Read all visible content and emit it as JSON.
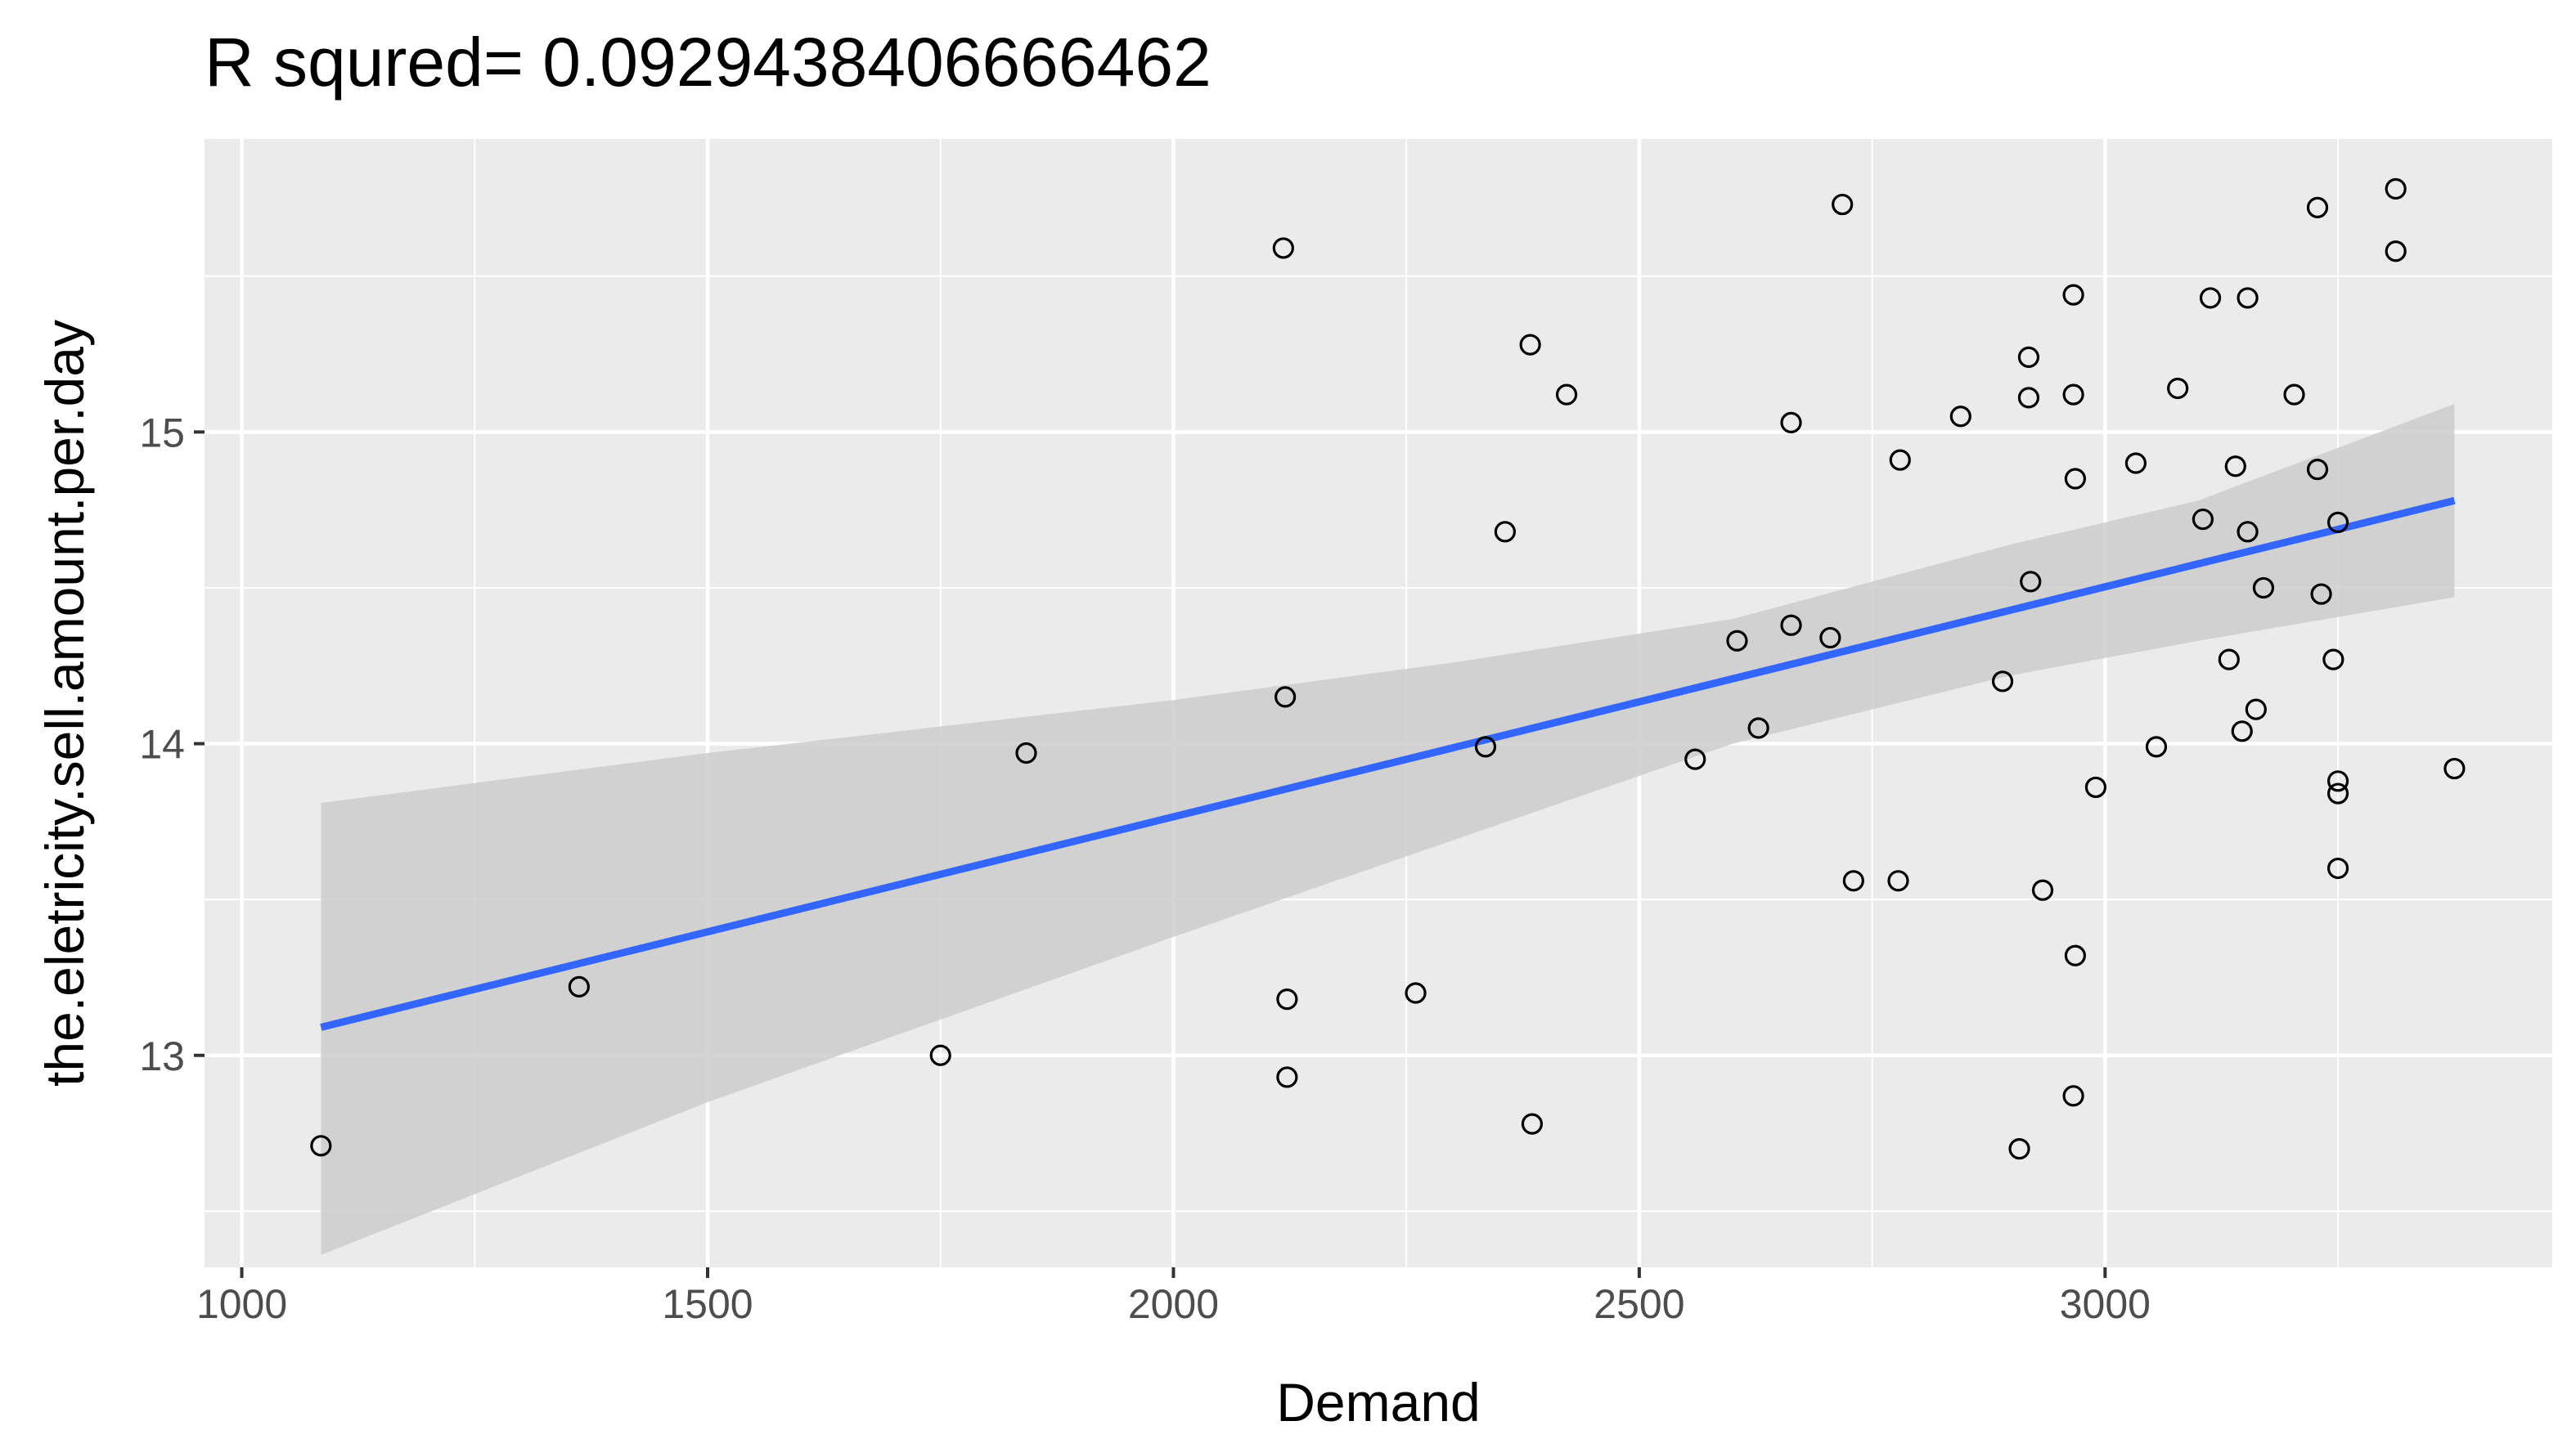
{
  "chart_data": {
    "type": "scatter",
    "title": "R squred= 0.0929438406666462",
    "xlabel": "Demand",
    "ylabel": "the.eletricity.sell.amount.per.day",
    "xlim": [
      960,
      3480
    ],
    "ylim": [
      12.32,
      15.94
    ],
    "x_ticks": [
      1000,
      1500,
      2000,
      2500,
      3000
    ],
    "y_ticks": [
      13,
      14,
      15
    ],
    "grid": true,
    "colors": {
      "panel_bg": "#ebebeb",
      "grid": "#ffffff",
      "point_stroke": "#000000",
      "line": "#3366ff",
      "ribbon": "#cccccc",
      "tick_text": "#4d4d4d"
    },
    "points": [
      {
        "x": 1085,
        "y": 12.71
      },
      {
        "x": 1362,
        "y": 13.22
      },
      {
        "x": 1750,
        "y": 13.0
      },
      {
        "x": 1842,
        "y": 13.97
      },
      {
        "x": 2118,
        "y": 15.59
      },
      {
        "x": 2120,
        "y": 14.15
      },
      {
        "x": 2122,
        "y": 13.18
      },
      {
        "x": 2122,
        "y": 12.93
      },
      {
        "x": 2260,
        "y": 13.2
      },
      {
        "x": 2335,
        "y": 13.99
      },
      {
        "x": 2356,
        "y": 14.68
      },
      {
        "x": 2383,
        "y": 15.28
      },
      {
        "x": 2385,
        "y": 12.78
      },
      {
        "x": 2422,
        "y": 15.12
      },
      {
        "x": 2560,
        "y": 13.95
      },
      {
        "x": 2605,
        "y": 14.33
      },
      {
        "x": 2628,
        "y": 14.05
      },
      {
        "x": 2663,
        "y": 15.03
      },
      {
        "x": 2663,
        "y": 14.38
      },
      {
        "x": 2705,
        "y": 14.34
      },
      {
        "x": 2718,
        "y": 15.73
      },
      {
        "x": 2730,
        "y": 13.56
      },
      {
        "x": 2778,
        "y": 13.56
      },
      {
        "x": 2780,
        "y": 14.91
      },
      {
        "x": 2845,
        "y": 15.05
      },
      {
        "x": 2890,
        "y": 14.2
      },
      {
        "x": 2908,
        "y": 12.7
      },
      {
        "x": 2918,
        "y": 15.24
      },
      {
        "x": 2918,
        "y": 15.11
      },
      {
        "x": 2920,
        "y": 14.52
      },
      {
        "x": 2933,
        "y": 13.53
      },
      {
        "x": 2966,
        "y": 15.44
      },
      {
        "x": 2966,
        "y": 15.12
      },
      {
        "x": 2968,
        "y": 14.85
      },
      {
        "x": 2968,
        "y": 13.32
      },
      {
        "x": 2966,
        "y": 12.87
      },
      {
        "x": 2990,
        "y": 13.86
      },
      {
        "x": 3033,
        "y": 14.9
      },
      {
        "x": 3055,
        "y": 13.99
      },
      {
        "x": 3078,
        "y": 15.14
      },
      {
        "x": 3105,
        "y": 14.72
      },
      {
        "x": 3113,
        "y": 15.43
      },
      {
        "x": 3133,
        "y": 14.27
      },
      {
        "x": 3140,
        "y": 14.89
      },
      {
        "x": 3147,
        "y": 14.04
      },
      {
        "x": 3153,
        "y": 15.43
      },
      {
        "x": 3153,
        "y": 14.68
      },
      {
        "x": 3162,
        "y": 14.11
      },
      {
        "x": 3170,
        "y": 14.5
      },
      {
        "x": 3203,
        "y": 15.12
      },
      {
        "x": 3228,
        "y": 15.72
      },
      {
        "x": 3228,
        "y": 14.88
      },
      {
        "x": 3232,
        "y": 14.48
      },
      {
        "x": 3245,
        "y": 14.27
      },
      {
        "x": 3250,
        "y": 14.71
      },
      {
        "x": 3250,
        "y": 13.88
      },
      {
        "x": 3250,
        "y": 13.84
      },
      {
        "x": 3250,
        "y": 13.6
      },
      {
        "x": 3312,
        "y": 15.78
      },
      {
        "x": 3312,
        "y": 15.58
      },
      {
        "x": 3375,
        "y": 13.92
      }
    ],
    "fit_line": [
      {
        "x": 1085,
        "y": 13.09
      },
      {
        "x": 3375,
        "y": 14.78
      }
    ],
    "confidence_band": [
      {
        "x": 1085,
        "lower": 12.36,
        "upper": 13.81
      },
      {
        "x": 1500,
        "lower": 12.85,
        "upper": 13.97
      },
      {
        "x": 2000,
        "lower": 13.38,
        "upper": 14.14
      },
      {
        "x": 2300,
        "lower": 13.69,
        "upper": 14.26
      },
      {
        "x": 2600,
        "lower": 14.0,
        "upper": 14.4
      },
      {
        "x": 2900,
        "lower": 14.22,
        "upper": 14.64
      },
      {
        "x": 3100,
        "lower": 14.33,
        "upper": 14.78
      },
      {
        "x": 3375,
        "lower": 14.47,
        "upper": 15.09
      }
    ]
  }
}
